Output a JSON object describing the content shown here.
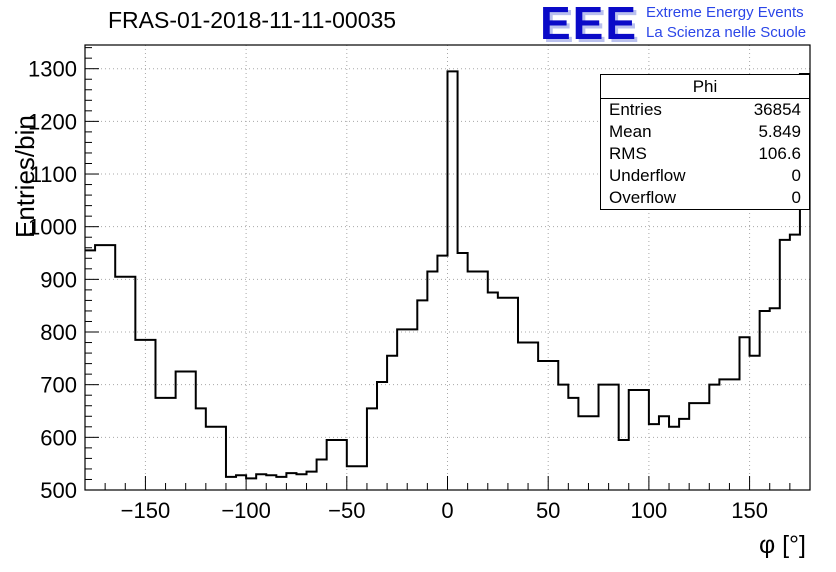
{
  "title": "FRAS-01-2018-11-11-00035",
  "logo": {
    "eee": "EEE",
    "line1": "Extreme Energy Events",
    "line2": "La Scienza nelle Scuole",
    "eee_color": "#0a0ac8",
    "text_color": "#2b46e8"
  },
  "stats": {
    "header": "Phi",
    "rows": [
      {
        "label": "Entries",
        "value": "36854"
      },
      {
        "label": "Mean",
        "value": "5.849"
      },
      {
        "label": "RMS",
        "value": "106.6"
      },
      {
        "label": "Underflow",
        "value": "0"
      },
      {
        "label": "Overflow",
        "value": "0"
      }
    ]
  },
  "chart_data": {
    "type": "bar",
    "histogram": true,
    "title": "FRAS-01-2018-11-11-00035",
    "xlabel": "φ [°]",
    "ylabel": "Entries/bin",
    "xlim": [
      -180,
      180
    ],
    "ylim": [
      500,
      1345
    ],
    "x_start": -180,
    "bin_width": 5,
    "values": [
      955,
      965,
      965,
      905,
      905,
      785,
      785,
      675,
      675,
      725,
      725,
      655,
      620,
      620,
      525,
      528,
      522,
      530,
      528,
      525,
      532,
      530,
      535,
      558,
      595,
      595,
      545,
      545,
      655,
      705,
      755,
      805,
      805,
      860,
      915,
      945,
      1295,
      950,
      915,
      915,
      875,
      865,
      865,
      780,
      780,
      745,
      745,
      700,
      675,
      640,
      640,
      700,
      700,
      595,
      690,
      690,
      625,
      640,
      620,
      635,
      665,
      665,
      700,
      710,
      710,
      790,
      755,
      840,
      845,
      975,
      985,
      1290
    ],
    "x_ticks": [
      -150,
      -100,
      -50,
      0,
      50,
      100,
      150
    ],
    "y_ticks": [
      500,
      600,
      700,
      800,
      900,
      1000,
      1100,
      1200,
      1300
    ],
    "x_minor_step": 10,
    "y_minor_step": 20,
    "grid": true,
    "line_color": "#000000"
  }
}
